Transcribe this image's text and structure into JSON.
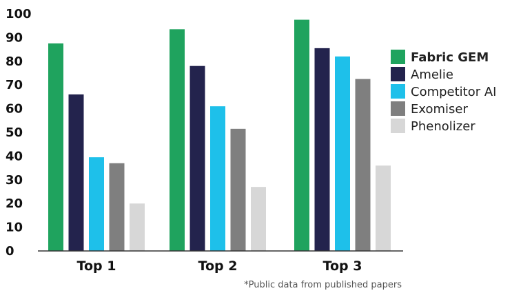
{
  "chart_data": {
    "type": "bar",
    "categories": [
      "Top 1",
      "Top 2",
      "Top 3"
    ],
    "series": [
      {
        "name": "Fabric GEM",
        "color": "#1fa35e",
        "values": [
          87.5,
          93.5,
          97.5
        ],
        "highlight": true
      },
      {
        "name": "Amelie",
        "color": "#23234d",
        "values": [
          66,
          78,
          85.5
        ]
      },
      {
        "name": "Competitor AI",
        "color": "#1ec0ea",
        "values": [
          39.5,
          61,
          82
        ]
      },
      {
        "name": "Exomiser",
        "color": "#7f7f7f",
        "values": [
          37,
          51.5,
          72.5
        ]
      },
      {
        "name": "Phenolizer",
        "color": "#d7d7d7",
        "values": [
          20,
          27,
          36
        ]
      }
    ],
    "yticks": [
      0,
      10,
      20,
      30,
      40,
      50,
      60,
      70,
      80,
      90,
      100
    ],
    "ylim": [
      0,
      100
    ],
    "title": "",
    "xlabel": "",
    "ylabel": "",
    "grid": false,
    "legend_position": "right",
    "footnote": "*Public data from published papers"
  }
}
